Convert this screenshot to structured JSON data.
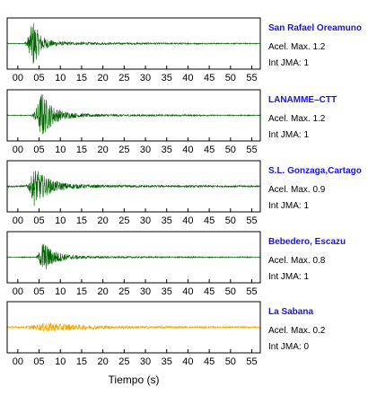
{
  "chart_data": {
    "type": "line",
    "xlabel": "Tiempo (s)",
    "xlim": [
      -2.5,
      57
    ],
    "x_ticks": [
      "00",
      "05",
      "10",
      "15",
      "20",
      "25",
      "30",
      "35",
      "40",
      "45",
      "50",
      "55"
    ],
    "grid": false,
    "panels": [
      {
        "station": "San Rafael Oreamuno",
        "acel": "Acel. Max. 1.2",
        "jma": "Int JMA: 1",
        "color": "#006400",
        "onset": 1.2,
        "peak_time": 3.5,
        "peak_amplitude": 1.2,
        "decay": 1.6,
        "noise": 0.02
      },
      {
        "station": "LANAMME–CTT",
        "acel": "Acel. Max. 1.2",
        "jma": "Int JMA: 1",
        "color": "#006400",
        "onset": 2.8,
        "peak_time": 5.5,
        "peak_amplitude": 1.2,
        "decay": 2.4,
        "noise": 0.02
      },
      {
        "station": "S.L. Gonzaga,Cartago",
        "acel": "Acel. Max. 0.9",
        "jma": "Int JMA: 1",
        "color": "#006400",
        "onset": 1.5,
        "peak_time": 3.8,
        "peak_amplitude": 0.9,
        "decay": 3.2,
        "noise": 0.04
      },
      {
        "station": "Bebedero, Escazu",
        "acel": "Acel. Max. 0.8",
        "jma": "Int JMA: 1",
        "color": "#006400",
        "onset": 4.0,
        "peak_time": 5.8,
        "peak_amplitude": 0.8,
        "decay": 2.6,
        "noise": 0.02
      },
      {
        "station": "La Sabana",
        "acel": "Acel. Max. 0.2",
        "jma": "Int JMA: 0",
        "color": "#f5a800",
        "onset": 0.0,
        "peak_time": 6.5,
        "peak_amplitude": 0.2,
        "decay": 8.0,
        "noise": 0.05
      }
    ]
  }
}
